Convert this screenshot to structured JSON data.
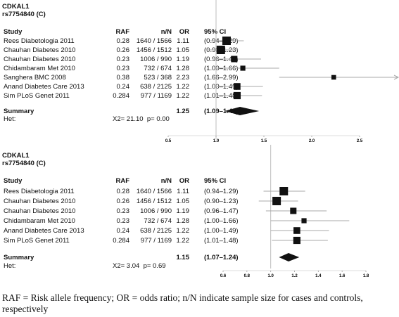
{
  "panels": [
    {
      "gene": "CDKAL1",
      "snp": "rs7754840 (C)",
      "headers": {
        "study": "Study",
        "raf": "RAF",
        "nn": "n/N",
        "or": "OR",
        "ci": "95% CI"
      },
      "rows": [
        {
          "study": "Rees Diabetologia 2011",
          "raf": "0.28",
          "nn": "1640 / 1566",
          "or": "1.11",
          "ci": "(0.94–1.29)"
        },
        {
          "study": "Chauhan Diabetes 2010",
          "raf": "0.26",
          "nn": "1456 / 1512",
          "or": "1.05",
          "ci": "(0.90–1.23)"
        },
        {
          "study": "Chauhan Diabetes 2010",
          "raf": "0.23",
          "nn": "1006 / 990",
          "or": "1.19",
          "ci": "(0.96–1.47)"
        },
        {
          "study": "Chidambaram Met 2010",
          "raf": "0.23",
          "nn": "732 / 674",
          "or": "1.28",
          "ci": "(1.00–1.66)"
        },
        {
          "study": "Sanghera BMC 2008",
          "raf": "0.38",
          "nn": "523 / 368",
          "or": "2.23",
          "ci": "(1.66–2.99)"
        },
        {
          "study": "Anand Diabetes Care 2013",
          "raf": "0.24",
          "nn": "638 / 2125",
          "or": "1.22",
          "ci": "(1.00–1.49)"
        },
        {
          "study": "Sim PLoS Genet 2011",
          "raf": "0.284",
          "nn": "977 / 1169",
          "or": "1.22",
          "ci": "(1.01–1.48)"
        }
      ],
      "summary": {
        "label": "Summary",
        "or": "1.25",
        "ci": "(1.09–1.45)"
      },
      "het": {
        "label": "Het:",
        "stat": "X2= 21.10  p= 0.00"
      },
      "ticks": [
        "0.5",
        "1.0",
        "1.5",
        "2.0",
        "2.5"
      ]
    },
    {
      "gene": "CDKAL1",
      "snp": "rs7754840 (C)",
      "headers": {
        "study": "Study",
        "raf": "RAF",
        "nn": "n/N",
        "or": "OR",
        "ci": "95% CI"
      },
      "rows": [
        {
          "study": "Rees Diabetologia 2011",
          "raf": "0.28",
          "nn": "1640 / 1566",
          "or": "1.11",
          "ci": "(0.94–1.29)"
        },
        {
          "study": "Chauhan Diabetes 2010",
          "raf": "0.26",
          "nn": "1456 / 1512",
          "or": "1.05",
          "ci": "(0.90–1.23)"
        },
        {
          "study": "Chauhan Diabetes 2010",
          "raf": "0.23",
          "nn": "1006 / 990",
          "or": "1.19",
          "ci": "(0.96–1.47)"
        },
        {
          "study": "Chidambaram Met 2010",
          "raf": "0.23",
          "nn": "732 / 674",
          "or": "1.28",
          "ci": "(1.00–1.66)"
        },
        {
          "study": "Anand Diabetes Care 2013",
          "raf": "0.24",
          "nn": "638 / 2125",
          "or": "1.22",
          "ci": "(1.00–1.49)"
        },
        {
          "study": "Sim PLoS Genet 2011",
          "raf": "0.284",
          "nn": "977 / 1169",
          "or": "1.22",
          "ci": "(1.01–1.48)"
        }
      ],
      "summary": {
        "label": "Summary",
        "or": "1.15",
        "ci": "(1.07–1.24)"
      },
      "het": {
        "label": "Het:",
        "stat": "X2= 3.04  p= 0.69"
      },
      "ticks": [
        "0.6",
        "0.8",
        "1.0",
        "1.2",
        "1.4",
        "1.6",
        "1.8"
      ]
    }
  ],
  "caption": "RAF = Risk allele frequency; OR = odds ratio; n/N indicate sample size for cases and controls, respectively",
  "chart_data": [
    {
      "type": "forest",
      "title": "CDKAL1 rs7754840 (C)",
      "xlim": [
        0.5,
        2.5
      ],
      "reference_line": 1.0,
      "points": [
        {
          "study": "Rees Diabetologia 2011",
          "or": 1.11,
          "lo": 0.94,
          "hi": 1.29,
          "weight": 1.0
        },
        {
          "study": "Chauhan Diabetes 2010",
          "or": 1.05,
          "lo": 0.9,
          "hi": 1.23,
          "weight": 1.0
        },
        {
          "study": "Chauhan Diabetes 2010",
          "or": 1.19,
          "lo": 0.96,
          "hi": 1.47,
          "weight": 0.75
        },
        {
          "study": "Chidambaram Met 2010",
          "or": 1.28,
          "lo": 1.0,
          "hi": 1.66,
          "weight": 0.6
        },
        {
          "study": "Sanghera BMC 2008",
          "or": 2.23,
          "lo": 1.66,
          "hi": 2.99,
          "weight": 0.55
        },
        {
          "study": "Anand Diabetes Care 2013",
          "or": 1.22,
          "lo": 1.0,
          "hi": 1.49,
          "weight": 0.8
        },
        {
          "study": "Sim PLoS Genet 2011",
          "or": 1.22,
          "lo": 1.01,
          "hi": 1.48,
          "weight": 0.85
        }
      ],
      "summary": {
        "or": 1.25,
        "lo": 1.09,
        "hi": 1.45
      }
    },
    {
      "type": "forest",
      "title": "CDKAL1 rs7754840 (C)",
      "xlim": [
        0.6,
        1.8
      ],
      "reference_line": 1.0,
      "points": [
        {
          "study": "Rees Diabetologia 2011",
          "or": 1.11,
          "lo": 0.94,
          "hi": 1.29,
          "weight": 1.0
        },
        {
          "study": "Chauhan Diabetes 2010",
          "or": 1.05,
          "lo": 0.9,
          "hi": 1.23,
          "weight": 1.0
        },
        {
          "study": "Chauhan Diabetes 2010",
          "or": 1.19,
          "lo": 0.96,
          "hi": 1.47,
          "weight": 0.75
        },
        {
          "study": "Chidambaram Met 2010",
          "or": 1.28,
          "lo": 1.0,
          "hi": 1.66,
          "weight": 0.6
        },
        {
          "study": "Anand Diabetes Care 2013",
          "or": 1.22,
          "lo": 1.0,
          "hi": 1.49,
          "weight": 0.8
        },
        {
          "study": "Sim PLoS Genet 2011",
          "or": 1.22,
          "lo": 1.01,
          "hi": 1.48,
          "weight": 0.85
        }
      ],
      "summary": {
        "or": 1.15,
        "lo": 1.07,
        "hi": 1.24
      }
    }
  ]
}
